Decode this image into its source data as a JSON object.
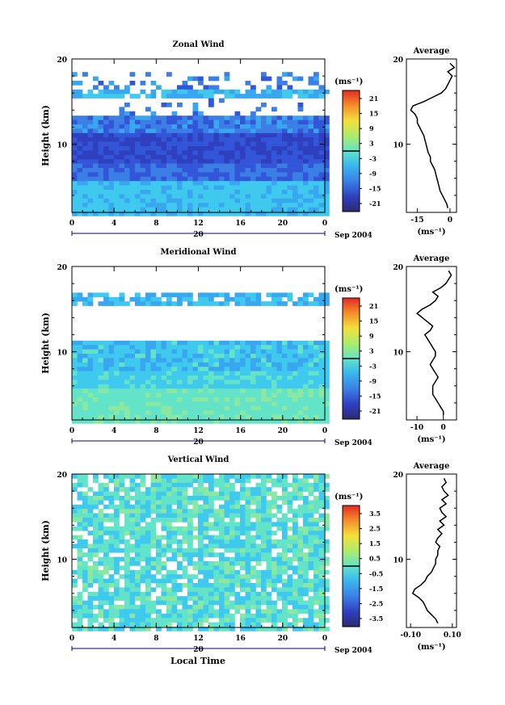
{
  "figure": {
    "date_label": "Sep 2004",
    "xlabel": "Local Time",
    "ylabel": "Height (km)",
    "colorbar_unit": "(ms⁻¹)",
    "avg_title": "Average",
    "avg_unit": "(ms⁻¹)",
    "date_day": "20"
  },
  "chart_data": [
    {
      "type": "heatmap",
      "title": "Zonal Wind",
      "xlabel": "Local Time",
      "ylabel": "Height (km)",
      "x_ticks": [
        "0",
        "4",
        "8",
        "12",
        "16",
        "20",
        "0"
      ],
      "y_ticks": [
        "20",
        "10"
      ],
      "xlim": [
        0,
        24
      ],
      "ylim": [
        2,
        20
      ],
      "colorbar": {
        "unit": "(ms⁻¹)",
        "ticks": [
          "21",
          "15",
          "9",
          "3",
          "-3",
          "-9",
          "-15",
          "-21"
        ],
        "range": [
          -24,
          24
        ]
      },
      "average_profile": {
        "title": "Average",
        "xlabel": "(ms⁻¹)",
        "x_ticks": [
          "-15",
          "0"
        ],
        "xlim": [
          -20,
          3
        ],
        "ylim": [
          2,
          20
        ],
        "height_km": [
          2.5,
          3,
          3.5,
          4,
          4.5,
          5,
          5.5,
          6,
          6.5,
          7,
          7.5,
          8,
          8.5,
          9,
          9.5,
          10,
          10.5,
          11,
          11.5,
          12,
          12.5,
          13,
          13.5,
          14,
          14.5,
          15,
          15.5,
          16,
          16.5,
          17,
          17.5,
          18,
          18.5,
          19,
          19.5
        ],
        "values": [
          -1,
          -1.5,
          -2.5,
          -3.5,
          -4.5,
          -5,
          -5.5,
          -6,
          -6.5,
          -7,
          -8,
          -9,
          -9,
          -10,
          -10.5,
          -11,
          -11.5,
          -12,
          -13,
          -14,
          -15,
          -15,
          -16,
          -18,
          -17,
          -12,
          -8,
          -4,
          -2,
          -1,
          0,
          1,
          -1,
          2,
          0
        ]
      }
    },
    {
      "type": "heatmap",
      "title": "Meridional Wind",
      "xlabel": "Local Time",
      "ylabel": "Height (km)",
      "x_ticks": [
        "0",
        "4",
        "8",
        "12",
        "16",
        "20",
        "0"
      ],
      "y_ticks": [
        "20",
        "10"
      ],
      "xlim": [
        0,
        24
      ],
      "ylim": [
        2,
        20
      ],
      "colorbar": {
        "unit": "(ms⁻¹)",
        "ticks": [
          "21",
          "15",
          "9",
          "3",
          "-3",
          "-9",
          "-15",
          "-21"
        ],
        "range": [
          -24,
          24
        ]
      },
      "average_profile": {
        "title": "Average",
        "xlabel": "(ms⁻¹)",
        "x_ticks": [
          "-10",
          "0"
        ],
        "xlim": [
          -14,
          5
        ],
        "ylim": [
          2,
          20
        ],
        "height_km": [
          2.5,
          3,
          3.5,
          4,
          4.5,
          5,
          5.5,
          6,
          6.5,
          7,
          7.5,
          8,
          8.5,
          9,
          9.5,
          10,
          10.5,
          11,
          11.5,
          12,
          12.5,
          13,
          13.5,
          14,
          14.5,
          15,
          15.5,
          16,
          16.5,
          17,
          17.5,
          18,
          18.5,
          19,
          19.5
        ],
        "values": [
          0,
          0,
          -1,
          -2,
          -3,
          -4,
          -4,
          -4,
          -3,
          -2,
          -3,
          -4,
          -5,
          -4,
          -3,
          -3,
          -4,
          -5,
          -6,
          -7,
          -5,
          -4,
          -6,
          -8,
          -10,
          -8,
          -5,
          -3,
          -2,
          -4,
          -1,
          1,
          2,
          3,
          2
        ]
      }
    },
    {
      "type": "heatmap",
      "title": "Vertical Wind",
      "xlabel": "Local Time",
      "ylabel": "Height (km)",
      "x_ticks": [
        "0",
        "4",
        "8",
        "12",
        "16",
        "20",
        "0"
      ],
      "y_ticks": [
        "20",
        "10"
      ],
      "xlim": [
        0,
        24
      ],
      "ylim": [
        2,
        20
      ],
      "colorbar": {
        "unit": "(ms⁻¹)",
        "ticks": [
          "3.5",
          "2.5",
          "1.5",
          "0.5",
          "-0.5",
          "-1.5",
          "-2.5",
          "-3.5"
        ],
        "range": [
          -4,
          4
        ]
      },
      "average_profile": {
        "title": "Average",
        "xlabel": "(ms⁻¹)",
        "x_ticks": [
          "-0.10",
          "0.10"
        ],
        "xlim": [
          -0.12,
          0.12
        ],
        "ylim": [
          2,
          20
        ],
        "height_km": [
          2.5,
          3,
          3.5,
          4,
          4.5,
          5,
          5.5,
          6,
          6.5,
          7,
          7.5,
          8,
          8.5,
          9,
          9.5,
          10,
          10.5,
          11,
          11.5,
          12,
          12.5,
          13,
          13.5,
          14,
          14.5,
          15,
          15.5,
          16,
          16.5,
          17,
          17.5,
          18,
          18.5,
          19,
          19.5
        ],
        "values": [
          0.03,
          0.02,
          0.0,
          -0.02,
          -0.03,
          -0.04,
          -0.06,
          -0.09,
          -0.08,
          -0.05,
          -0.03,
          -0.02,
          0.0,
          0.01,
          0.02,
          0.02,
          0.03,
          0.03,
          0.04,
          0.02,
          0.03,
          0.05,
          0.03,
          0.06,
          0.04,
          0.07,
          0.05,
          0.04,
          0.07,
          0.05,
          0.08,
          0.06,
          0.05,
          0.07,
          0.06
        ]
      }
    }
  ]
}
